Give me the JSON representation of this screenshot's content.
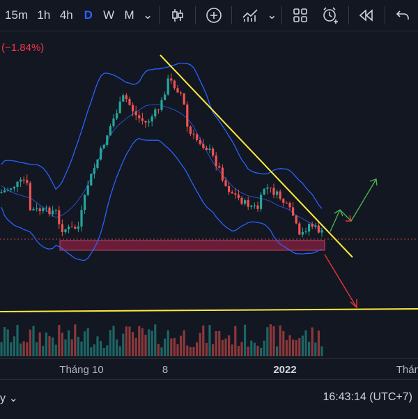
{
  "toolbar": {
    "timeframes": [
      "15m",
      "1h",
      "4h",
      "D",
      "W",
      "M"
    ],
    "active_timeframe": "D",
    "dropdown_glyph": "⌄",
    "icons": [
      "candles-icon",
      "add-indicator-icon",
      "indicators-icon",
      "layout-icon",
      "alert-icon",
      "replay-icon",
      "undo-icon"
    ]
  },
  "header": {
    "change_percent": "(−1.84%)"
  },
  "chart_data": {
    "type": "candlestick",
    "title": "",
    "xlabel": "",
    "ylabel": "",
    "x_ticks": [
      "Tháng 10",
      "8",
      "2022",
      "Tháng"
    ],
    "trendlines": [
      "descending-resistance",
      "horizontal-level"
    ],
    "support_zone": true,
    "bollinger_bands": true,
    "volume": true,
    "projection_arrows": [
      "down-red",
      "up-green"
    ]
  },
  "colors": {
    "background": "#131722",
    "bull": "#26a69a",
    "bear": "#ef5350",
    "band": "#2962ff",
    "trendline": "#ffeb3b",
    "zone": "#7a1f3d",
    "projection_up": "#4caf50",
    "projection_down": "#e53935"
  },
  "footer": {
    "range_suffix": "y ⌄",
    "clock": "16:43:14 (UTC+7)"
  }
}
